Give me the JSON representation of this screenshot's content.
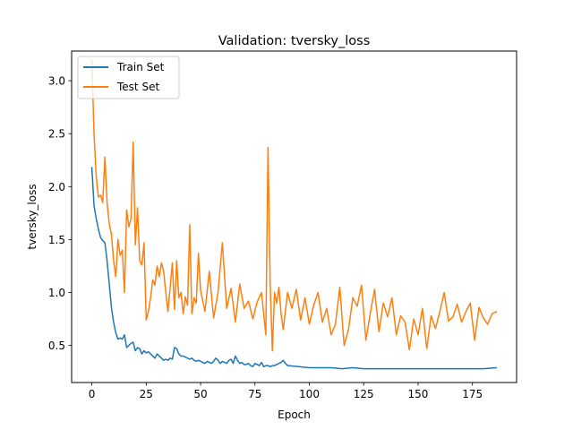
{
  "chart_data": {
    "type": "line",
    "title": "Validation: tversky_loss",
    "xlabel": "Epoch",
    "ylabel": "tversky_loss",
    "xlim": [
      -9.3,
      195.3
    ],
    "ylim": [
      0.15,
      3.28
    ],
    "x_ticks": [
      0,
      25,
      50,
      75,
      100,
      125,
      150,
      175
    ],
    "y_ticks": [
      0.5,
      1.0,
      1.5,
      2.0,
      2.5,
      3.0
    ],
    "x_tick_labels": [
      "0",
      "25",
      "50",
      "75",
      "100",
      "125",
      "150",
      "175"
    ],
    "y_tick_labels": [
      "0.5",
      "1.0",
      "1.5",
      "2.0",
      "2.5",
      "3.0"
    ],
    "grid": false,
    "legend": {
      "position": "top-left"
    },
    "series": [
      {
        "name": "Train Set",
        "color": "#1f77b4",
        "x": [
          0,
          1,
          2,
          3,
          4,
          5,
          6,
          7,
          8,
          9,
          10,
          11,
          12,
          13,
          14,
          15,
          16,
          17,
          18,
          19,
          20,
          21,
          22,
          23,
          24,
          25,
          26,
          27,
          28,
          29,
          30,
          31,
          32,
          33,
          34,
          35,
          36,
          37,
          38,
          39,
          40,
          41,
          42,
          43,
          44,
          45,
          46,
          47,
          48,
          49,
          50,
          51,
          52,
          53,
          54,
          55,
          56,
          57,
          58,
          59,
          60,
          61,
          62,
          63,
          64,
          65,
          66,
          67,
          68,
          69,
          70,
          71,
          72,
          73,
          74,
          75,
          76,
          77,
          78,
          79,
          80,
          81,
          82,
          83,
          84,
          85,
          86,
          87,
          88,
          89,
          90,
          95,
          100,
          105,
          110,
          115,
          120,
          125,
          130,
          135,
          140,
          145,
          150,
          155,
          160,
          165,
          170,
          175,
          180,
          186
        ],
        "values": [
          2.18,
          1.82,
          1.7,
          1.6,
          1.52,
          1.49,
          1.47,
          1.3,
          1.08,
          0.86,
          0.72,
          0.62,
          0.56,
          0.57,
          0.56,
          0.6,
          0.48,
          0.5,
          0.52,
          0.53,
          0.45,
          0.48,
          0.47,
          0.42,
          0.45,
          0.43,
          0.44,
          0.42,
          0.4,
          0.38,
          0.42,
          0.4,
          0.38,
          0.36,
          0.37,
          0.36,
          0.38,
          0.37,
          0.48,
          0.47,
          0.42,
          0.4,
          0.4,
          0.39,
          0.38,
          0.37,
          0.38,
          0.36,
          0.35,
          0.36,
          0.35,
          0.34,
          0.33,
          0.35,
          0.34,
          0.33,
          0.35,
          0.38,
          0.36,
          0.33,
          0.35,
          0.34,
          0.33,
          0.36,
          0.37,
          0.33,
          0.4,
          0.36,
          0.33,
          0.34,
          0.32,
          0.32,
          0.33,
          0.31,
          0.3,
          0.33,
          0.32,
          0.31,
          0.34,
          0.3,
          0.31,
          0.31,
          0.3,
          0.31,
          0.31,
          0.32,
          0.33,
          0.34,
          0.36,
          0.33,
          0.31,
          0.3,
          0.29,
          0.29,
          0.29,
          0.28,
          0.29,
          0.28,
          0.28,
          0.28,
          0.28,
          0.28,
          0.28,
          0.28,
          0.28,
          0.28,
          0.28,
          0.28,
          0.28,
          0.29
        ]
      },
      {
        "name": "Test Set",
        "color": "#ff7f0e",
        "x": [
          0,
          1,
          2,
          3,
          4,
          5,
          6,
          7,
          8,
          9,
          10,
          11,
          12,
          13,
          14,
          15,
          16,
          17,
          18,
          19,
          20,
          21,
          22,
          23,
          24,
          25,
          26,
          27,
          28,
          29,
          30,
          31,
          32,
          33,
          34,
          35,
          36,
          37,
          38,
          39,
          40,
          41,
          42,
          43,
          44,
          45,
          46,
          47,
          48,
          49,
          50,
          52,
          54,
          56,
          58,
          60,
          62,
          64,
          66,
          68,
          70,
          72,
          74,
          76,
          78,
          80,
          81,
          82,
          83,
          84,
          85,
          86,
          87,
          88,
          90,
          92,
          94,
          96,
          98,
          100,
          102,
          104,
          106,
          108,
          110,
          112,
          114,
          116,
          118,
          120,
          122,
          124,
          126,
          128,
          130,
          132,
          134,
          136,
          138,
          140,
          142,
          144,
          146,
          148,
          150,
          152,
          154,
          156,
          158,
          160,
          162,
          164,
          166,
          168,
          170,
          172,
          174,
          176,
          178,
          180,
          182,
          184,
          186
        ],
        "values": [
          3.2,
          2.5,
          2.1,
          1.9,
          1.92,
          1.85,
          2.28,
          1.85,
          1.65,
          1.55,
          1.3,
          1.15,
          1.5,
          1.35,
          1.4,
          1.0,
          1.78,
          1.62,
          1.7,
          2.42,
          1.45,
          1.8,
          1.3,
          1.26,
          1.47,
          0.74,
          0.82,
          0.95,
          1.12,
          1.07,
          1.25,
          1.15,
          1.28,
          1.2,
          1.0,
          0.82,
          1.05,
          1.28,
          0.84,
          1.3,
          0.95,
          1.0,
          0.8,
          0.96,
          0.88,
          1.64,
          0.8,
          0.95,
          0.9,
          1.37,
          1.02,
          0.82,
          1.2,
          0.76,
          1.0,
          1.47,
          0.85,
          1.04,
          0.72,
          1.08,
          0.85,
          0.92,
          0.75,
          0.91,
          1.0,
          0.6,
          2.37,
          1.08,
          0.45,
          1.0,
          0.9,
          1.05,
          0.8,
          0.65,
          1.0,
          0.85,
          1.03,
          0.74,
          0.95,
          0.7,
          0.88,
          1.0,
          0.72,
          0.85,
          0.6,
          0.7,
          1.05,
          0.5,
          0.65,
          0.95,
          0.87,
          1.07,
          0.55,
          0.8,
          1.03,
          0.63,
          0.9,
          0.77,
          0.95,
          0.6,
          0.78,
          0.72,
          0.46,
          0.75,
          0.6,
          0.85,
          0.47,
          0.78,
          0.66,
          0.82,
          1.0,
          0.73,
          0.77,
          0.89,
          0.72,
          0.82,
          0.9,
          0.55,
          0.86,
          0.76,
          0.7,
          0.8,
          0.82
        ]
      }
    ]
  }
}
